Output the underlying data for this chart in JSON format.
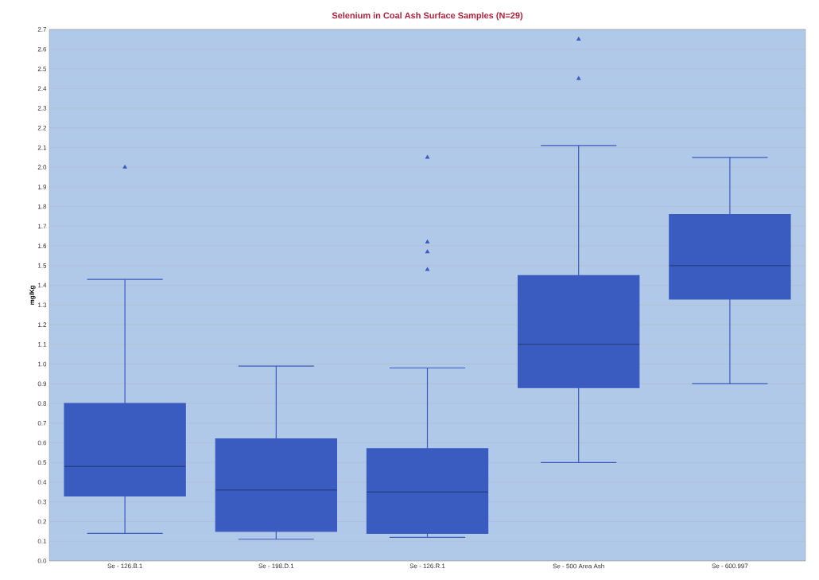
{
  "chart_data": {
    "type": "box",
    "title": "Selenium in Coal Ash Surface Samples (N=29)",
    "ylabel": "mg/Kg",
    "categories": [
      "Se - 126.B.1",
      "Se - 198.D.1",
      "Se - 126.R.1",
      "Se - 500 Area Ash",
      "Se - 600.997"
    ],
    "color": "#3a5bbf",
    "marker": "triangle",
    "grid": "y",
    "boxes": [
      {
        "low": 0.14,
        "q1": 0.33,
        "median": 0.48,
        "q3": 0.8,
        "high": 1.43,
        "outliers": [
          2.0
        ]
      },
      {
        "low": 0.11,
        "q1": 0.15,
        "median": 0.36,
        "q3": 0.62,
        "high": 0.99
      },
      {
        "low": 0.12,
        "q1": 0.14,
        "median": 0.35,
        "q3": 0.57,
        "high": 0.98,
        "outliers": [
          2.05,
          1.62,
          1.57,
          1.48
        ]
      },
      {
        "low": 0.5,
        "q1": 0.88,
        "median": 1.1,
        "q3": 1.45,
        "high": 2.11,
        "outliers": [
          2.65,
          2.45
        ]
      },
      {
        "low": 0.9,
        "q1": 1.33,
        "median": 1.5,
        "q3": 1.76,
        "high": 2.05
      }
    ],
    "ylim": [
      0,
      2.7
    ],
    "yticks": [
      {
        "value": 0,
        "label": "0.0"
      },
      {
        "value": 0.1,
        "label": "0.1"
      },
      {
        "value": 0.2,
        "label": "0.2"
      },
      {
        "value": 0.3,
        "label": "0.3"
      },
      {
        "value": 0.4,
        "label": "0.4"
      },
      {
        "value": 0.5,
        "label": "0.5"
      },
      {
        "value": 0.6,
        "label": "0.6"
      },
      {
        "value": 0.7,
        "label": "0.7"
      },
      {
        "value": 0.8,
        "label": "0.8"
      },
      {
        "value": 0.9,
        "label": "0.9"
      },
      {
        "value": 1.0,
        "label": "1.0"
      },
      {
        "value": 1.1,
        "label": "1.1"
      },
      {
        "value": 1.2,
        "label": "1.2"
      },
      {
        "value": 1.3,
        "label": "1.3"
      },
      {
        "value": 1.4,
        "label": "1.4"
      },
      {
        "value": 1.5,
        "label": "1.5"
      },
      {
        "value": 1.6,
        "label": "1.6"
      },
      {
        "value": 1.7,
        "label": "1.7"
      },
      {
        "value": 1.8,
        "label": "1.8"
      },
      {
        "value": 1.9,
        "label": "1.9"
      },
      {
        "value": 2.0,
        "label": "2.0"
      },
      {
        "value": 2.1,
        "label": "2.1"
      },
      {
        "value": 2.2,
        "label": "2.2"
      },
      {
        "value": 2.3,
        "label": "2.3"
      },
      {
        "value": 2.4,
        "label": "2.4"
      },
      {
        "value": 2.5,
        "label": "2.5"
      },
      {
        "value": 2.6,
        "label": "2.6"
      },
      {
        "value": 2.7,
        "label": "2.7"
      }
    ]
  }
}
